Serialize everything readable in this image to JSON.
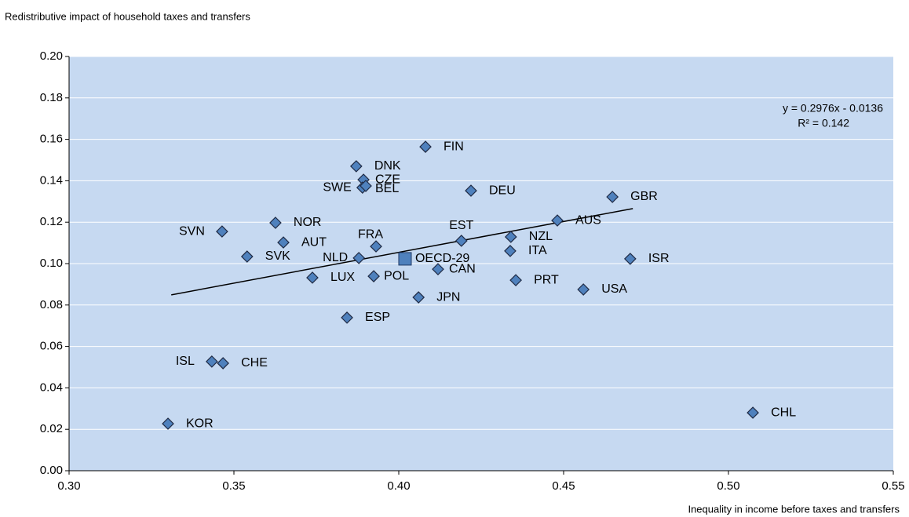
{
  "chart_data": {
    "type": "scatter",
    "title": "Redistributive impact of household taxes and transfers",
    "x_label": "Inequality in income before taxes and transfers",
    "color": "#4f81bd",
    "points": [
      {
        "label": "KOR",
        "x": 0.33,
        "y": 0.0227
      },
      {
        "label": "ISL",
        "x": 0.3433,
        "y": 0.0527
      },
      {
        "label": "CHE",
        "x": 0.3467,
        "y": 0.0519
      },
      {
        "label": "SVN",
        "x": 0.3464,
        "y": 0.1155
      },
      {
        "label": "SVK",
        "x": 0.354,
        "y": 0.1034
      },
      {
        "label": "NOR",
        "x": 0.3626,
        "y": 0.1197
      },
      {
        "label": "AUT",
        "x": 0.365,
        "y": 0.1102
      },
      {
        "label": "LUX",
        "x": 0.3738,
        "y": 0.0932
      },
      {
        "label": "NLD",
        "x": 0.3879,
        "y": 0.1027
      },
      {
        "label": "FRA",
        "x": 0.3931,
        "y": 0.1083
      },
      {
        "label": "POL",
        "x": 0.3924,
        "y": 0.0939
      },
      {
        "label": "ESP",
        "x": 0.3843,
        "y": 0.0739
      },
      {
        "label": "DNK",
        "x": 0.3871,
        "y": 0.147
      },
      {
        "label": "CZE",
        "x": 0.3893,
        "y": 0.1405
      },
      {
        "label": "SWE",
        "x": 0.389,
        "y": 0.1367
      },
      {
        "label": "BEL",
        "x": 0.39,
        "y": 0.1375
      },
      {
        "label": "FIN",
        "x": 0.4081,
        "y": 0.1564
      },
      {
        "label": "DEU",
        "x": 0.4219,
        "y": 0.1352
      },
      {
        "label": "OECD-29",
        "x": 0.4019,
        "y": 0.1023,
        "marker": "square"
      },
      {
        "label": "CAN",
        "x": 0.4119,
        "y": 0.0973
      },
      {
        "label": "JPN",
        "x": 0.406,
        "y": 0.0837
      },
      {
        "label": "EST",
        "x": 0.419,
        "y": 0.111
      },
      {
        "label": "NZL",
        "x": 0.434,
        "y": 0.1129
      },
      {
        "label": "ITA",
        "x": 0.4338,
        "y": 0.1061
      },
      {
        "label": "PRT",
        "x": 0.4355,
        "y": 0.092
      },
      {
        "label": "AUS",
        "x": 0.4481,
        "y": 0.1208
      },
      {
        "label": "USA",
        "x": 0.456,
        "y": 0.0875
      },
      {
        "label": "GBR",
        "x": 0.4648,
        "y": 0.1322
      },
      {
        "label": "ISR",
        "x": 0.4702,
        "y": 0.1023
      },
      {
        "label": "CHL",
        "x": 0.5074,
        "y": 0.028
      }
    ],
    "trendline": {
      "slope": 0.2976,
      "intercept": -0.0136,
      "xrange": [
        0.331,
        0.471
      ],
      "equation": "y = 0.2976x - 0.0136",
      "r_squared": "R² = 0.142"
    },
    "xlim": [
      0.3,
      0.55
    ],
    "xticks": [
      {
        "value": 0.3,
        "label": "0.30"
      },
      {
        "value": 0.35,
        "label": "0.35"
      },
      {
        "value": 0.4,
        "label": "0.40"
      },
      {
        "value": 0.45,
        "label": "0.45"
      },
      {
        "value": 0.5,
        "label": "0.50"
      },
      {
        "value": 0.55,
        "label": "0.55"
      }
    ],
    "ylim": [
      0,
      0.2
    ],
    "yticks": [
      {
        "value": 0,
        "label": "0.00"
      },
      {
        "value": 0.02,
        "label": "0.02"
      },
      {
        "value": 0.04,
        "label": "0.04"
      },
      {
        "value": 0.06,
        "label": "0.06"
      },
      {
        "value": 0.08,
        "label": "0.08"
      },
      {
        "value": 0.1,
        "label": "0.10"
      },
      {
        "value": 0.12,
        "label": "0.12"
      },
      {
        "value": 0.14,
        "label": "0.14"
      },
      {
        "value": 0.16,
        "label": "0.16"
      },
      {
        "value": 0.18,
        "label": "0.18"
      },
      {
        "value": 0.2,
        "label": "0.20"
      }
    ],
    "grid": true
  }
}
